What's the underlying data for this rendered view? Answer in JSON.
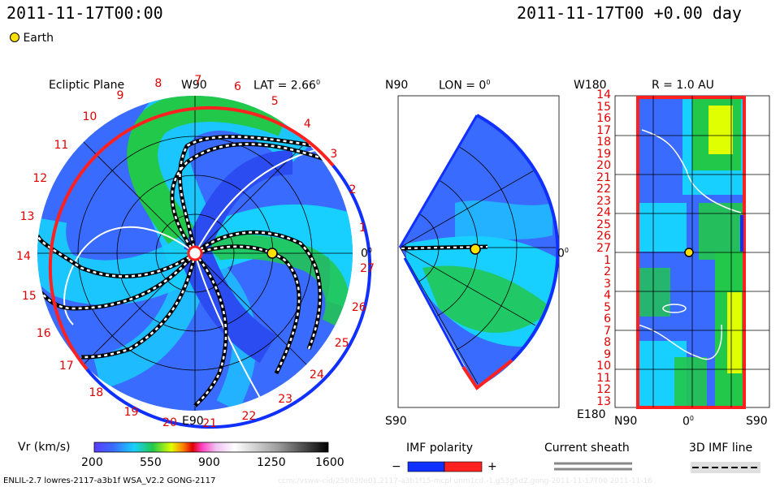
{
  "header": {
    "left_time": "2011-11-17T00:00",
    "right_time": "2011-11-17T00 +0.00 day",
    "earth_legend": "Earth"
  },
  "panels": {
    "ecliptic": {
      "title": "Ecliptic Plane",
      "lat_label": "LAT = 2.66",
      "top_label": "W90",
      "bottom_label": "E90",
      "right_label": "0",
      "carrington_ticks": [
        "13",
        "12",
        "11",
        "10",
        "9",
        "8",
        "7",
        "6",
        "5",
        "4",
        "3",
        "2",
        "1",
        "27",
        "26",
        "25",
        "24",
        "23",
        "22",
        "21",
        "20",
        "19",
        "18",
        "17",
        "16",
        "15",
        "14"
      ]
    },
    "meridional": {
      "top_label": "N90",
      "lon_label": "LON = 0",
      "bottom_label": "S90",
      "right_label": "0"
    },
    "radial": {
      "top_label": "W180",
      "r_label": "R = 1.0 AU",
      "bottom_left": "E180",
      "bottom_n": "N90",
      "bottom_zero": "0",
      "bottom_s": "S90",
      "y_ticks": [
        "14",
        "15",
        "16",
        "17",
        "18",
        "19",
        "20",
        "21",
        "22",
        "23",
        "24",
        "25",
        "26",
        "27",
        "1",
        "2",
        "3",
        "4",
        "5",
        "6",
        "7",
        "8",
        "9",
        "10",
        "11",
        "12",
        "13"
      ]
    }
  },
  "colorbar": {
    "label": "Vr (km/s)",
    "ticks": [
      "200",
      "550",
      "900",
      "1250",
      "1600"
    ]
  },
  "legends": {
    "imf_polarity": "IMF polarity",
    "minus": "−",
    "plus": "+",
    "current_sheath": "Current sheath",
    "imf_line": "3D IMF line"
  },
  "footer": {
    "model": "ENLIL-2.7 lowres-2117-a3b1f WSA_V2.2 GONG-2117",
    "watermark": "ccmc/vsww-cid/258030e01.2117-a3b1f15-mcpl unm1cd.-1.g53g5d2.gong-2011-11-17T00   2011-11-16"
  },
  "colors": {
    "slow": "#3a6bff",
    "mid": "#18d0ff",
    "green": "#22c84a",
    "yellow": "#ffff00",
    "red": "#ff2020",
    "blue_boundary": "#1030ff",
    "earth": "#ffe000"
  },
  "chart_data": {
    "type": "heatmap",
    "quantity": "Vr (km/s)",
    "colorbar_range": [
      200,
      1600
    ],
    "colorbar_ticks": [
      200,
      550,
      900,
      1250,
      1600
    ],
    "earth_position": {
      "lat_deg": 2.66,
      "lon_deg": 0,
      "r_au": 1.0
    },
    "time": "2011-11-17T00 +0.00 day"
  }
}
